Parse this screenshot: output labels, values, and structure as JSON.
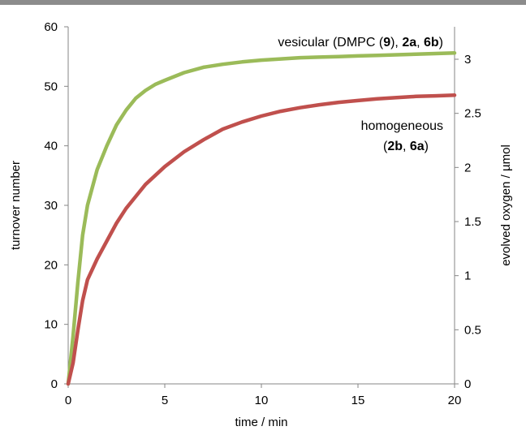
{
  "chart_data": {
    "type": "line",
    "xlabel": "time / min",
    "ylabel": "turnover number",
    "y2label": "evolved oxygen / µmol",
    "xlim": [
      0,
      20
    ],
    "ylim": [
      0,
      60
    ],
    "y2lim": [
      0,
      3.3
    ],
    "x_ticks": [
      0,
      5,
      10,
      15,
      20
    ],
    "y_ticks": [
      0,
      10,
      20,
      30,
      40,
      50,
      60
    ],
    "y2_ticks": [
      0,
      0.5,
      1,
      1.5,
      2,
      2.5,
      3
    ],
    "x_tick_labels": [
      "0",
      "5",
      "10",
      "15",
      "20"
    ],
    "y_tick_labels": [
      "0",
      "10",
      "20",
      "30",
      "40",
      "50",
      "60"
    ],
    "y2_tick_labels": [
      "0",
      "0.5",
      "1",
      "1.5",
      "2",
      "2.5",
      "3"
    ],
    "grid": false,
    "series": [
      {
        "name": "vesicular (DMPC (9), 2a, 6b)",
        "color": "#9bbb59",
        "x": [
          0,
          0.25,
          0.5,
          0.75,
          1,
          1.5,
          2,
          2.5,
          3,
          3.5,
          4,
          4.5,
          5,
          6,
          7,
          8,
          9,
          10,
          11,
          12,
          13,
          14,
          15,
          16,
          17,
          18,
          19,
          20
        ],
        "y": [
          0,
          8,
          17,
          25,
          30,
          36,
          40,
          43.5,
          46,
          48,
          49.3,
          50.3,
          51,
          52.3,
          53.2,
          53.7,
          54.1,
          54.4,
          54.6,
          54.8,
          54.9,
          55,
          55.1,
          55.2,
          55.3,
          55.4,
          55.5,
          55.6
        ]
      },
      {
        "name": "homogeneous (2b, 6a)",
        "color": "#c0504d",
        "x": [
          0,
          0.25,
          0.5,
          0.75,
          1,
          1.5,
          2,
          2.5,
          3,
          3.5,
          4,
          4.5,
          5,
          6,
          7,
          8,
          9,
          10,
          11,
          12,
          13,
          14,
          15,
          16,
          17,
          18,
          19,
          20
        ],
        "y": [
          0,
          3.5,
          9,
          14,
          17.5,
          21,
          24,
          27,
          29.5,
          31.5,
          33.5,
          35,
          36.5,
          39,
          41,
          42.8,
          44,
          45,
          45.8,
          46.4,
          46.9,
          47.3,
          47.6,
          47.9,
          48.1,
          48.3,
          48.4,
          48.5
        ]
      }
    ],
    "annotations": {
      "vesicular": [
        {
          "text": "vesicular (DMPC (",
          "bold": false
        },
        {
          "text": "9",
          "bold": true
        },
        {
          "text": "), ",
          "bold": false
        },
        {
          "text": "2a",
          "bold": true
        },
        {
          "text": ", ",
          "bold": false
        },
        {
          "text": "6b",
          "bold": true
        },
        {
          "text": ")",
          "bold": false
        }
      ],
      "homogeneous_line1": "homogeneous",
      "homogeneous_line2": [
        {
          "text": "(",
          "bold": false
        },
        {
          "text": "2b",
          "bold": true
        },
        {
          "text": ", ",
          "bold": false
        },
        {
          "text": "6a",
          "bold": true
        },
        {
          "text": ")",
          "bold": false
        }
      ]
    }
  }
}
